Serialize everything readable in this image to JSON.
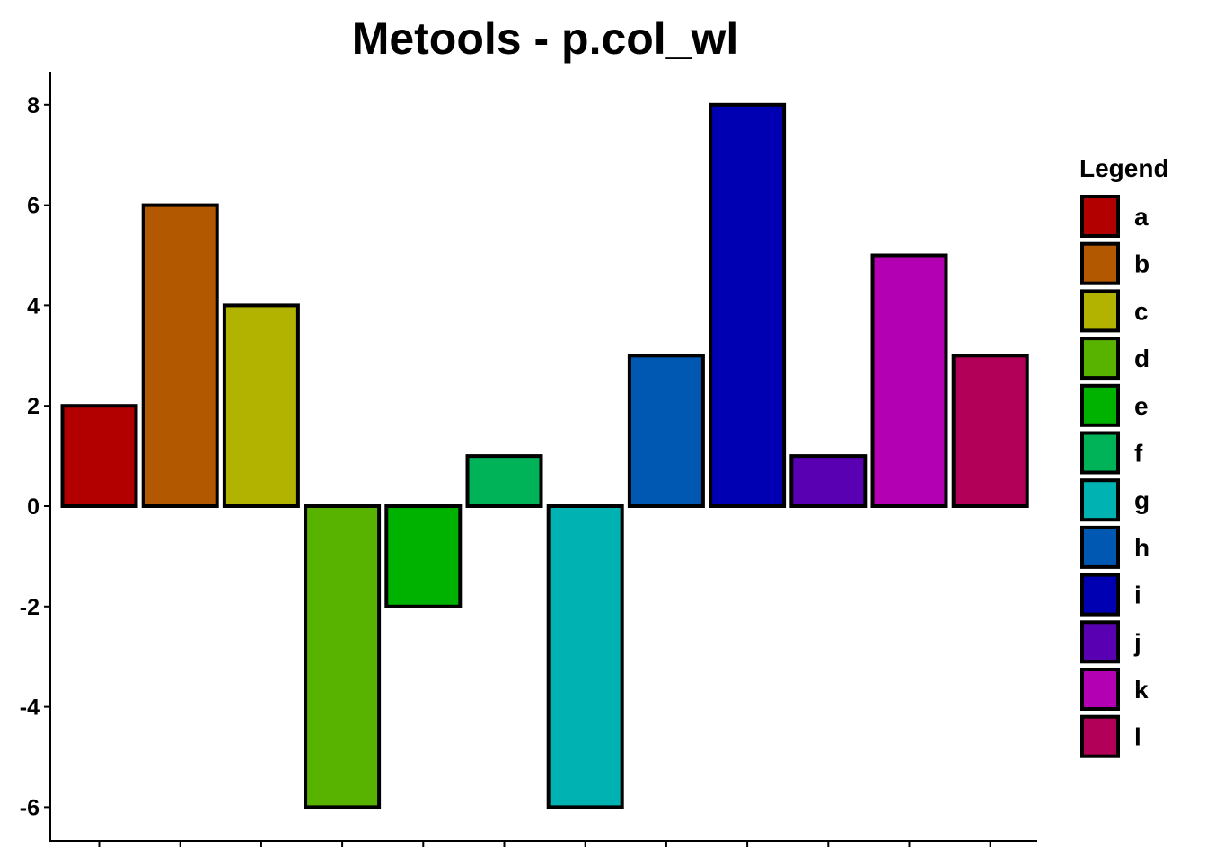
{
  "chart_data": {
    "type": "bar",
    "title": "Metools - p.col_wl",
    "xlabel": "",
    "ylabel": "",
    "categories": [
      "a",
      "b",
      "c",
      "d",
      "e",
      "f",
      "g",
      "h",
      "i",
      "j",
      "k",
      "l"
    ],
    "values": [
      2,
      6,
      4,
      -6,
      -2,
      1,
      -6,
      3,
      8,
      1,
      5,
      3
    ],
    "colors": [
      "#B20000",
      "#B25800",
      "#B2B200",
      "#58B200",
      "#00B200",
      "#00B258",
      "#00B2B2",
      "#0058B2",
      "#0000B2",
      "#5800B2",
      "#B200B2",
      "#B20058"
    ],
    "bar_outline_color": "#000000",
    "ylim": [
      -6.6,
      8.6
    ],
    "y_ticks": [
      "-6",
      "-4",
      "-2",
      "0",
      "2",
      "4",
      "6",
      "8"
    ],
    "x_tick_labels_shown": false,
    "grid": false,
    "legend": {
      "title": "Legend",
      "position": "right",
      "entries": [
        "a",
        "b",
        "c",
        "d",
        "e",
        "f",
        "g",
        "h",
        "i",
        "j",
        "k",
        "l"
      ]
    }
  }
}
